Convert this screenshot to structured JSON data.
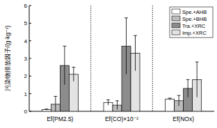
{
  "chart_data": {
    "type": "bar",
    "y_label": "污染物排放因子/(g·kg⁻¹)",
    "categories": [
      "Ef(PM2.5)",
      "Ef(CO)×10⁻²",
      "Ef(NOx)"
    ],
    "series": [
      {
        "name": "Spe.+AHB",
        "color": "#ffffff",
        "values": [
          0.1,
          0.5,
          0.7
        ],
        "errors": [
          0.03,
          0.15,
          0.05
        ]
      },
      {
        "name": "Spe.+BHB",
        "color": "#bdbdbd",
        "values": [
          0.4,
          0.35,
          0.6
        ],
        "errors": [
          0.45,
          0.25,
          0.3
        ]
      },
      {
        "name": "Tra.+XRC",
        "color": "#8c8c8c",
        "values": [
          2.6,
          3.7,
          1.3
        ],
        "errors": [
          1.1,
          1.6,
          0.5
        ]
      },
      {
        "name": "Imp.+XRC",
        "color": "#e3e3e3",
        "values": [
          2.1,
          3.3,
          1.8
        ],
        "errors": [
          0.4,
          1.0,
          1.0
        ]
      }
    ],
    "ylim": [
      0,
      6
    ],
    "yticks": [
      0,
      1,
      2,
      3,
      4,
      5,
      6
    ],
    "legend": "upper right"
  }
}
